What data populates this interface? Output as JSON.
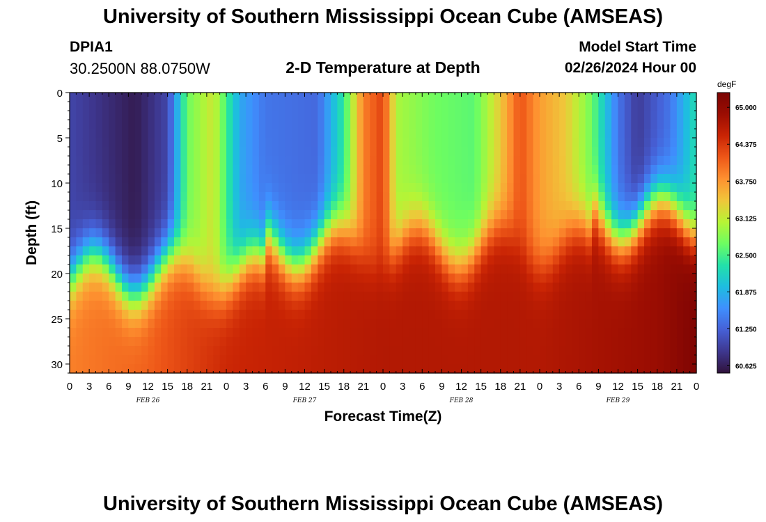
{
  "header": {
    "title": "University of Southern Mississippi Ocean Cube (AMSEAS)",
    "station_id": "DPIA1",
    "coordinates": "30.2500N  88.0750W",
    "chart_title": "2-D Temperature at Depth",
    "model_start_label": "Model Start Time",
    "model_start_value": "02/26/2024 Hour 00"
  },
  "footer": {
    "title": "University of Southern Mississippi Ocean Cube (AMSEAS)"
  },
  "chart_data": {
    "type": "heatmap",
    "title": "2-D Temperature at Depth",
    "xlabel": "Forecast Time(Z)",
    "ylabel": "Depth (ft)",
    "x_unit": "forecast hour",
    "x_range": [
      0,
      96
    ],
    "y_range": [
      0,
      31
    ],
    "y_reversed": true,
    "x_tick_labels": [
      "0",
      "3",
      "6",
      "9",
      "12",
      "15",
      "18",
      "21",
      "0",
      "3",
      "6",
      "9",
      "12",
      "15",
      "18",
      "21",
      "0",
      "3",
      "6",
      "9",
      "12",
      "15",
      "18",
      "21",
      "0",
      "3",
      "6",
      "9",
      "12",
      "15",
      "18",
      "21",
      "0"
    ],
    "y_ticks": [
      0,
      5,
      10,
      15,
      20,
      25,
      30
    ],
    "date_labels": [
      {
        "hour": 12,
        "label": "FEB 26"
      },
      {
        "hour": 36,
        "label": "FEB 27"
      },
      {
        "hour": 60,
        "label": "FEB 28"
      },
      {
        "hour": 84,
        "label": "FEB 29"
      }
    ],
    "colorbar": {
      "unit": "degF",
      "min": 60.5,
      "max": 65.25,
      "tick_labels": [
        "65.000",
        "64.375",
        "63.750",
        "63.125",
        "62.500",
        "61.875",
        "61.250",
        "60.625"
      ],
      "tick_values": [
        65.0,
        64.375,
        63.75,
        63.125,
        62.5,
        61.875,
        61.25,
        60.625
      ],
      "colormap": [
        "#30123b",
        "#3e378f",
        "#4660d6",
        "#3f8ffe",
        "#1ebde0",
        "#23e1a9",
        "#6dfd61",
        "#b7f435",
        "#f0c63a",
        "#fe9130",
        "#ee5718",
        "#c92404",
        "#9b0d02",
        "#7a0403"
      ]
    },
    "surface_layer_temps": [
      {
        "hour": 0,
        "temp": 61.0
      },
      {
        "hour": 5,
        "temp": 60.8
      },
      {
        "hour": 10,
        "temp": 60.6
      },
      {
        "hour": 15,
        "temp": 61.0
      },
      {
        "hour": 18,
        "temp": 62.7
      },
      {
        "hour": 22,
        "temp": 63.2
      },
      {
        "hour": 26,
        "temp": 61.8
      },
      {
        "hour": 30,
        "temp": 61.4
      },
      {
        "hour": 38,
        "temp": 61.3
      },
      {
        "hour": 42,
        "temp": 62.4
      },
      {
        "hour": 45,
        "temp": 63.9
      },
      {
        "hour": 48,
        "temp": 64.3
      },
      {
        "hour": 50,
        "temp": 63.0
      },
      {
        "hour": 56,
        "temp": 62.7
      },
      {
        "hour": 62,
        "temp": 62.6
      },
      {
        "hour": 66,
        "temp": 63.4
      },
      {
        "hour": 69,
        "temp": 64.2
      },
      {
        "hour": 72,
        "temp": 63.7
      },
      {
        "hour": 76,
        "temp": 63.4
      },
      {
        "hour": 80,
        "temp": 62.7
      },
      {
        "hour": 84,
        "temp": 61.4
      },
      {
        "hour": 87,
        "temp": 60.9
      },
      {
        "hour": 92,
        "temp": 61.4
      },
      {
        "hour": 96,
        "temp": 62.3
      }
    ],
    "bottom_layer_temps": [
      {
        "hour": 0,
        "temp": 63.9
      },
      {
        "hour": 12,
        "temp": 64.1
      },
      {
        "hour": 24,
        "temp": 64.5
      },
      {
        "hour": 48,
        "temp": 64.7
      },
      {
        "hour": 72,
        "temp": 64.7
      },
      {
        "hour": 90,
        "temp": 64.9
      },
      {
        "hour": 96,
        "temp": 65.2
      }
    ]
  }
}
